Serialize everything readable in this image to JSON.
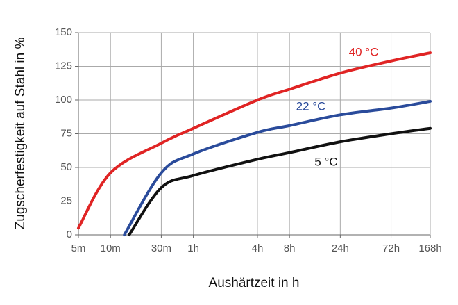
{
  "chart_data": {
    "type": "line",
    "x_label": "Aushärtzeit in h",
    "y_label": "Zugscherfestigkeit auf Stahl in %",
    "log_x": true,
    "grid": true,
    "xlim": [
      0.0833,
      168
    ],
    "ylim": [
      0,
      150
    ],
    "xticks": [
      {
        "value": 0.0833,
        "label": "5m"
      },
      {
        "value": 0.1667,
        "label": "10m"
      },
      {
        "value": 0.5,
        "label": "30m"
      },
      {
        "value": 1,
        "label": "1h"
      },
      {
        "value": 4,
        "label": "4h"
      },
      {
        "value": 8,
        "label": "8h"
      },
      {
        "value": 24,
        "label": "24h"
      },
      {
        "value": 72,
        "label": "72h"
      },
      {
        "value": 168,
        "label": "168h"
      }
    ],
    "yticks": [
      0,
      25,
      50,
      75,
      100,
      125,
      150
    ],
    "series": [
      {
        "name": "40 °C",
        "color": "#e02424",
        "x": [
          0.0833,
          0.1667,
          0.5,
          1,
          4,
          8,
          24,
          72,
          168
        ],
        "values": [
          5,
          46,
          68,
          79,
          100,
          108,
          120,
          129,
          135
        ]
      },
      {
        "name": "22 °C",
        "color": "#2a4b9b",
        "x": [
          0.225,
          0.5,
          1,
          4,
          8,
          24,
          72,
          168
        ],
        "values": [
          0,
          46,
          60,
          76,
          81,
          89,
          94,
          99
        ]
      },
      {
        "name": "5 °C",
        "color": "#111111",
        "x": [
          0.25,
          0.5,
          1,
          4,
          8,
          24,
          72,
          168
        ],
        "values": [
          0,
          35,
          44,
          56,
          61,
          69,
          75,
          79
        ]
      }
    ]
  }
}
